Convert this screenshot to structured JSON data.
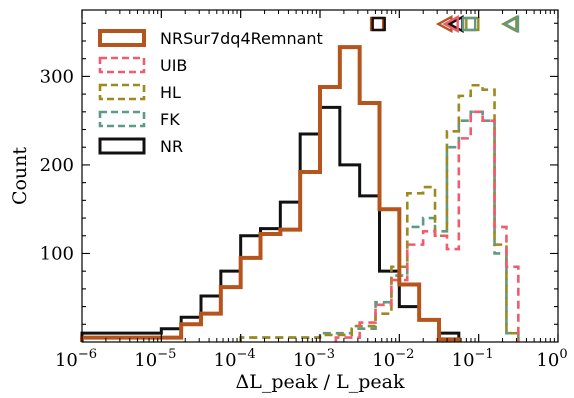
{
  "chart_data": {
    "type": "histogram",
    "xlabel": "ΔL_peak / L_peak",
    "ylabel": "Count",
    "xscale": "log",
    "xlim": [
      1e-06,
      1
    ],
    "ylim": [
      0,
      375
    ],
    "x_tick_labels": [
      {
        "mantissa": "10",
        "exp": "−6"
      },
      {
        "mantissa": "10",
        "exp": "−5"
      },
      {
        "mantissa": "10",
        "exp": "−4"
      },
      {
        "mantissa": "10",
        "exp": "−3"
      },
      {
        "mantissa": "10",
        "exp": "−2"
      },
      {
        "mantissa": "10",
        "exp": "−1"
      },
      {
        "mantissa": "10",
        "exp": "0"
      }
    ],
    "y_ticks": [
      100,
      200,
      300
    ],
    "legend_position": "top-left",
    "series": [
      {
        "name": "NRSur7dq4Remnant",
        "color": "#b5541c",
        "dash": "solid",
        "width": 4,
        "edges_log10": [
          -6.0,
          -4.75,
          -4.5,
          -4.25,
          -4.0,
          -3.75,
          -3.5,
          -3.25,
          -3.0,
          -2.75,
          -2.5,
          -2.25,
          -2.0,
          -1.75,
          -1.5,
          -1.25
        ],
        "counts": [
          5,
          20,
          32,
          62,
          95,
          122,
          127,
          192,
          288,
          333,
          270,
          150,
          65,
          25,
          3
        ]
      },
      {
        "name": "UIB",
        "color": "#f25a6e",
        "dash": "dashed",
        "width": 2.6,
        "edges_log10": [
          -2.8,
          -2.5,
          -2.3,
          -2.1,
          -1.9,
          -1.7,
          -1.55,
          -1.4,
          -1.25,
          -1.1,
          -0.95,
          -0.8,
          -0.65,
          -0.5
        ],
        "counts": [
          5,
          22,
          42,
          70,
          110,
          125,
          120,
          105,
          230,
          260,
          250,
          130,
          85
        ]
      },
      {
        "name": "HL",
        "color": "#9c8a1f",
        "dash": "dashed",
        "width": 2.6,
        "edges_log10": [
          -4.0,
          -3.0,
          -2.6,
          -2.3,
          -2.1,
          -1.9,
          -1.7,
          -1.55,
          -1.4,
          -1.25,
          -1.1,
          -0.95,
          -0.8,
          -0.65,
          -0.5
        ],
        "counts": [
          5,
          8,
          18,
          32,
          85,
          168,
          175,
          120,
          238,
          278,
          290,
          285,
          110,
          10
        ]
      },
      {
        "name": "FK",
        "color": "#5e9a84",
        "dash": "dashed",
        "width": 2.6,
        "edges_log10": [
          -4.0,
          -3.0,
          -2.6,
          -2.3,
          -2.1,
          -1.9,
          -1.7,
          -1.55,
          -1.4,
          -1.25,
          -1.1,
          -0.95,
          -0.8,
          -0.65,
          -0.5
        ],
        "counts": [
          5,
          10,
          15,
          45,
          75,
          130,
          140,
          125,
          220,
          250,
          260,
          250,
          100,
          10
        ]
      },
      {
        "name": "NR",
        "color": "#111111",
        "dash": "solid",
        "width": 3,
        "edges_log10": [
          -6.0,
          -5.0,
          -4.75,
          -4.5,
          -4.25,
          -4.0,
          -3.75,
          -3.5,
          -3.25,
          -3.0,
          -2.75,
          -2.5,
          -2.25,
          -2.0,
          -1.75,
          -1.5,
          -1.25
        ],
        "counts": [
          10,
          15,
          28,
          52,
          80,
          120,
          128,
          158,
          235,
          265,
          200,
          165,
          80,
          40,
          25,
          10
        ]
      }
    ],
    "markers": [
      {
        "series": "NRSur7dq4Remnant",
        "shape": "square",
        "x_log10": -2.28
      },
      {
        "series": "NR",
        "shape": "square",
        "x_log10": -2.26
      },
      {
        "series": "NRSur7dq4Remnant",
        "shape": "triangle-left",
        "x_log10": -1.42
      },
      {
        "series": "NR",
        "shape": "triangle-left",
        "x_log10": -1.28
      },
      {
        "series": "UIB",
        "shape": "triangle-left",
        "x_log10": -1.34
      },
      {
        "series": "HL",
        "shape": "square",
        "x_log10": -1.08
      },
      {
        "series": "FK",
        "shape": "square",
        "x_log10": -1.12
      },
      {
        "series": "HL",
        "shape": "triangle-left",
        "x_log10": -0.6
      },
      {
        "series": "FK",
        "shape": "triangle-left",
        "x_log10": -0.58
      }
    ]
  }
}
